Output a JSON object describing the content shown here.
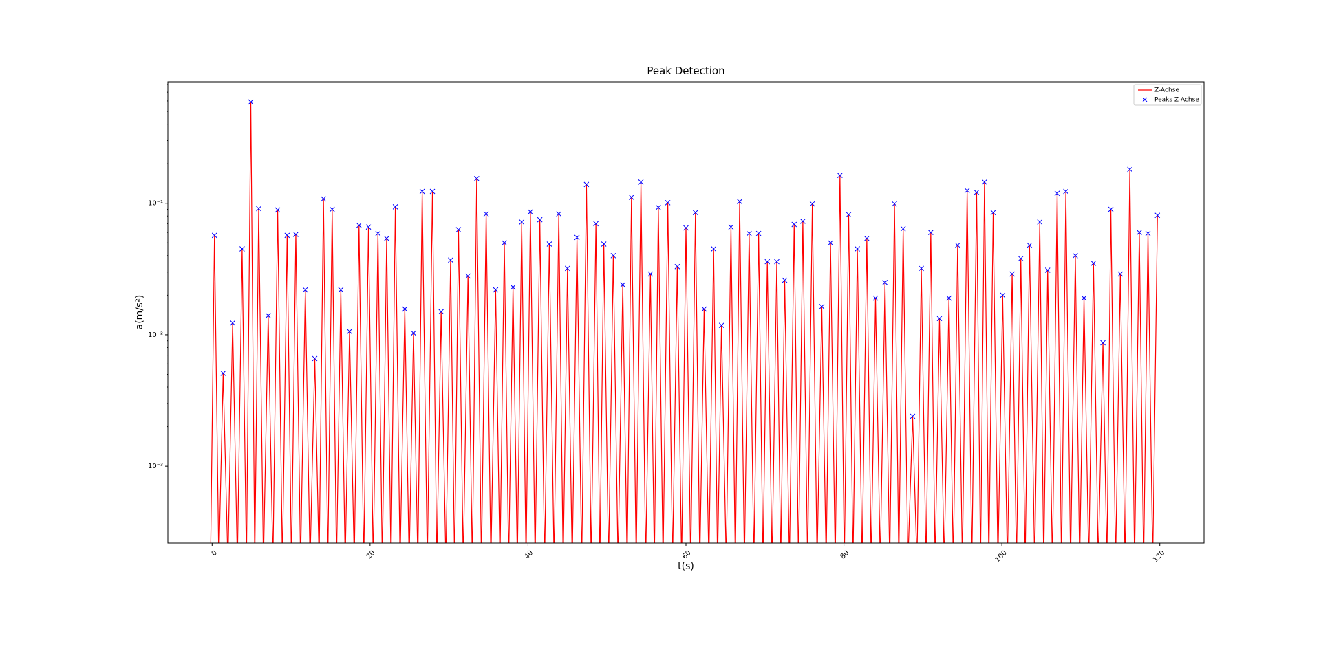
{
  "chart_data": {
    "type": "line",
    "title": "Peak Detection",
    "xlabel": "t(s)",
    "ylabel": "a(m/s²)",
    "log_y": true,
    "grid": false,
    "legend": "upper right",
    "xlim": [
      -5.6,
      125.6
    ],
    "xticks": [
      0,
      20,
      40,
      60,
      80,
      100,
      120
    ],
    "ylim": [
      0.00026,
      0.84
    ],
    "yticks": [
      {
        "value": 0.001,
        "label": "10⁻³"
      },
      {
        "value": 0.01,
        "label": "10⁻²"
      },
      {
        "value": 0.1,
        "label": "10⁻¹"
      }
    ],
    "series": [
      {
        "name": "Z-Achse",
        "color": "#ff0000",
        "style": "line",
        "x": [
          -0.2,
          0.3,
          0.85,
          1.4,
          2.0,
          2.6,
          3.2,
          3.8,
          4.35,
          4.9,
          5.4,
          5.9,
          6.5,
          7.1,
          7.7,
          8.3,
          8.9,
          9.5,
          10.05,
          10.6,
          11.2,
          11.8,
          12.4,
          13.0,
          13.55,
          14.1,
          14.65,
          15.2,
          15.75,
          16.3,
          16.85,
          17.4,
          18.0,
          18.6,
          19.2,
          19.8,
          20.4,
          21.0,
          21.55,
          22.1,
          22.65,
          23.2,
          23.8,
          24.4,
          24.95,
          25.5,
          26.05,
          26.6,
          27.25,
          27.9,
          28.45,
          29.0,
          29.6,
          30.2,
          30.7,
          31.2,
          31.8,
          32.4,
          32.95,
          33.5,
          34.1,
          34.7,
          35.3,
          35.9,
          36.45,
          37.0,
          37.55,
          38.1,
          38.65,
          39.2,
          39.75,
          40.3,
          40.9,
          41.5,
          42.1,
          42.7,
          43.3,
          43.9,
          44.45,
          45.0,
          45.6,
          46.2,
          46.8,
          47.4,
          48.0,
          48.6,
          49.1,
          49.6,
          50.2,
          50.8,
          51.4,
          52.0,
          52.55,
          53.1,
          53.7,
          54.3,
          54.9,
          55.5,
          56.0,
          56.5,
          57.1,
          57.7,
          58.3,
          58.9,
          59.45,
          60.0,
          60.6,
          61.2,
          61.75,
          62.3,
          62.9,
          63.5,
          64.0,
          64.5,
          65.1,
          65.7,
          66.25,
          66.8,
          67.4,
          68.0,
          68.6,
          69.2,
          69.75,
          70.3,
          70.9,
          71.5,
          72.0,
          72.5,
          73.1,
          73.7,
          74.25,
          74.8,
          75.4,
          76.0,
          76.6,
          77.2,
          77.75,
          78.3,
          78.9,
          79.5,
          80.05,
          80.6,
          81.15,
          81.7,
          82.3,
          82.9,
          83.45,
          84.0,
          84.6,
          85.2,
          85.8,
          86.4,
          86.95,
          87.5,
          88.1,
          88.7,
          89.25,
          89.8,
          90.4,
          91.0,
          91.55,
          92.1,
          92.7,
          93.3,
          93.85,
          94.4,
          95.0,
          95.6,
          96.2,
          96.8,
          97.3,
          97.8,
          98.35,
          98.9,
          99.5,
          100.1,
          100.7,
          101.3,
          101.85,
          102.4,
          102.95,
          103.5,
          104.15,
          104.8,
          105.3,
          105.8,
          106.4,
          107.0,
          107.55,
          108.1,
          108.7,
          109.3,
          109.85,
          110.4,
          111.0,
          111.6,
          112.2,
          112.8,
          113.3,
          113.8,
          114.4,
          115.0,
          115.6,
          116.2,
          116.8,
          117.4,
          117.95,
          118.5,
          119.1,
          119.7
        ],
        "values": [
          0,
          0.057,
          0,
          0.0051,
          0,
          0.0123,
          0,
          0.045,
          0,
          0.59,
          0,
          0.091,
          0,
          0.014,
          0,
          0.089,
          0,
          0.057,
          0,
          0.058,
          0,
          0.022,
          0,
          0.0066,
          0,
          0.108,
          0,
          0.09,
          0,
          0.022,
          0,
          0.0106,
          0,
          0.068,
          0,
          0.066,
          0,
          0.059,
          0,
          0.054,
          0,
          0.094,
          0,
          0.0157,
          0,
          0.0103,
          0,
          0.123,
          0,
          0.123,
          0,
          0.015,
          0,
          0.037,
          0,
          0.063,
          0,
          0.028,
          0,
          0.154,
          0,
          0.083,
          0,
          0.022,
          0,
          0.05,
          0,
          0.023,
          0,
          0.072,
          0,
          0.086,
          0,
          0.075,
          0,
          0.049,
          0,
          0.083,
          0,
          0.032,
          0,
          0.055,
          0,
          0.139,
          0,
          0.07,
          0,
          0.049,
          0,
          0.04,
          0,
          0.024,
          0,
          0.111,
          0,
          0.145,
          0,
          0.029,
          0,
          0.093,
          0,
          0.101,
          0,
          0.033,
          0,
          0.065,
          0,
          0.085,
          0,
          0.0157,
          0,
          0.045,
          0,
          0.0118,
          0,
          0.066,
          0,
          0.103,
          0,
          0.059,
          0,
          0.059,
          0,
          0.036,
          0,
          0.036,
          0,
          0.026,
          0,
          0.069,
          0,
          0.073,
          0,
          0.099,
          0,
          0.0164,
          0,
          0.05,
          0,
          0.163,
          0,
          0.082,
          0,
          0.045,
          0,
          0.054,
          0,
          0.019,
          0,
          0.025,
          0,
          0.099,
          0,
          0.064,
          0,
          0.0024,
          0,
          0.032,
          0,
          0.06,
          0,
          0.0133,
          0,
          0.019,
          0,
          0.048,
          0,
          0.125,
          0,
          0.121,
          0,
          0.145,
          0,
          0.085,
          0,
          0.02,
          0,
          0.029,
          0,
          0.038,
          0,
          0.048,
          0,
          0.072,
          0,
          0.031,
          0,
          0.119,
          0,
          0.123,
          0,
          0.04,
          0,
          0.019,
          0,
          0.035,
          0,
          0.0087,
          0,
          0.09,
          0,
          0.029,
          0,
          0.181,
          0,
          0.06,
          0,
          0.059,
          0,
          0.081
        ]
      },
      {
        "name": "Peaks Z-Achse",
        "color": "#0000ff",
        "style": "marker",
        "x": [
          0.3,
          1.4,
          2.6,
          3.8,
          4.9,
          5.9,
          7.1,
          8.3,
          9.5,
          10.6,
          11.8,
          13.0,
          14.1,
          15.2,
          16.3,
          17.4,
          18.6,
          19.8,
          21.0,
          22.1,
          23.2,
          24.4,
          25.5,
          26.6,
          27.9,
          29.0,
          30.2,
          31.2,
          32.4,
          33.5,
          34.7,
          35.9,
          37.0,
          38.1,
          39.2,
          40.3,
          41.5,
          42.7,
          43.9,
          45.0,
          46.2,
          47.4,
          48.6,
          49.6,
          50.8,
          52.0,
          53.1,
          54.3,
          55.5,
          56.5,
          57.7,
          58.9,
          60.0,
          61.2,
          62.3,
          63.5,
          64.5,
          65.7,
          66.8,
          68.0,
          69.2,
          70.3,
          71.5,
          72.5,
          73.7,
          74.8,
          76.0,
          77.2,
          78.3,
          79.5,
          80.6,
          81.7,
          82.9,
          84.0,
          85.2,
          86.4,
          87.5,
          88.7,
          89.8,
          91.0,
          92.1,
          93.3,
          94.4,
          95.6,
          96.8,
          97.8,
          98.9,
          100.1,
          101.3,
          102.4,
          103.5,
          104.8,
          105.8,
          107.0,
          108.1,
          109.3,
          110.4,
          111.6,
          112.8,
          113.8,
          115.0,
          116.2,
          117.4,
          118.5,
          119.7
        ],
        "values": [
          0.057,
          0.0051,
          0.0123,
          0.045,
          0.59,
          0.091,
          0.014,
          0.089,
          0.057,
          0.058,
          0.022,
          0.0066,
          0.108,
          0.09,
          0.022,
          0.0106,
          0.068,
          0.066,
          0.059,
          0.054,
          0.094,
          0.0157,
          0.0103,
          0.123,
          0.123,
          0.015,
          0.037,
          0.063,
          0.028,
          0.154,
          0.083,
          0.022,
          0.05,
          0.023,
          0.072,
          0.086,
          0.075,
          0.049,
          0.083,
          0.032,
          0.055,
          0.139,
          0.07,
          0.049,
          0.04,
          0.024,
          0.111,
          0.145,
          0.029,
          0.093,
          0.101,
          0.033,
          0.065,
          0.085,
          0.0157,
          0.045,
          0.0118,
          0.066,
          0.103,
          0.059,
          0.059,
          0.036,
          0.036,
          0.026,
          0.069,
          0.073,
          0.099,
          0.0164,
          0.05,
          0.163,
          0.082,
          0.045,
          0.054,
          0.019,
          0.025,
          0.099,
          0.064,
          0.0024,
          0.032,
          0.06,
          0.0133,
          0.019,
          0.048,
          0.125,
          0.121,
          0.145,
          0.085,
          0.02,
          0.029,
          0.038,
          0.048,
          0.072,
          0.031,
          0.119,
          0.123,
          0.04,
          0.019,
          0.035,
          0.0087,
          0.09,
          0.029,
          0.181,
          0.06,
          0.059,
          0.081
        ]
      }
    ]
  }
}
